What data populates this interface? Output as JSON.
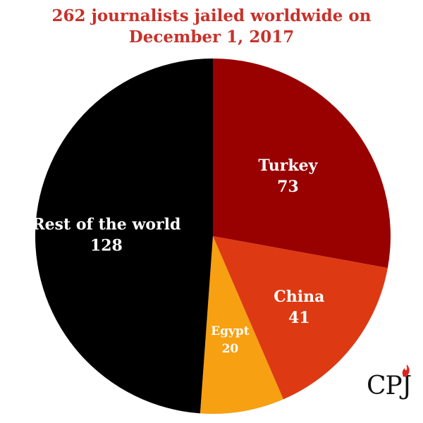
{
  "chart_data": {
    "type": "pie",
    "title_line1": "262 journalists jailed worldwide on",
    "title_line2": "December 1, 2017",
    "slices": [
      {
        "label": "Turkey",
        "value": 73,
        "color": "#990000"
      },
      {
        "label": "China",
        "value": 41,
        "color": "#dd3a13"
      },
      {
        "label": "Egypt",
        "value": 20,
        "color": "#f7a012"
      },
      {
        "label": "Rest of the world",
        "value": 128,
        "color": "#000000"
      }
    ],
    "total": 262
  },
  "logo": {
    "text": "CPJ",
    "flame_color": "#d8261f"
  },
  "colors": {
    "title": "#c8312a",
    "label": "#ffffff"
  }
}
